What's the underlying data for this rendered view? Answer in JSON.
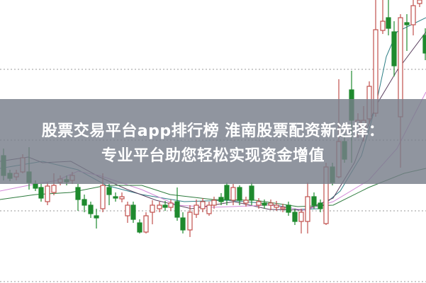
{
  "banner": {
    "title_line1": "股票交易平台app排行榜 淮南股票配资新选择：",
    "title_line2": "专业平台助您轻松实现资金增值"
  },
  "colors": {
    "up": "#c0504d",
    "down": "#1f8a2e",
    "banner": "#787e8a",
    "ma_lines": [
      "#2d7f86",
      "#5a3f5e",
      "#d28ad8",
      "#2c7a3c"
    ]
  }
}
